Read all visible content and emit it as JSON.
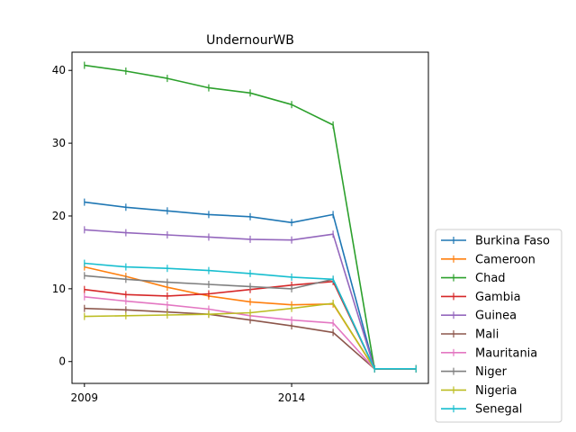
{
  "chart_data": {
    "type": "line",
    "title": "UndernourWB",
    "xlabel": "",
    "ylabel": "",
    "xlim": [
      2008.7,
      2017.3
    ],
    "ylim": [
      -3,
      42.5
    ],
    "x": [
      2009,
      2010,
      2011,
      2012,
      2013,
      2014,
      2015,
      2016,
      2017
    ],
    "x_ticks": [
      2009,
      2014
    ],
    "y_ticks": [
      0,
      10,
      20,
      30,
      40
    ],
    "marker": "|",
    "grid": false,
    "legend_position": "outside-right-bottom",
    "series": [
      {
        "name": "Burkina Faso",
        "color": "#1f77b4",
        "values": [
          21.9,
          21.2,
          20.7,
          20.2,
          19.9,
          19.1,
          20.2,
          -1.0,
          -1.0
        ]
      },
      {
        "name": "Cameroon",
        "color": "#ff7f0e",
        "values": [
          13.0,
          11.7,
          10.2,
          9.0,
          8.2,
          7.8,
          7.9,
          -1.0,
          -1.0
        ]
      },
      {
        "name": "Chad",
        "color": "#2ca02c",
        "values": [
          40.7,
          39.9,
          38.9,
          37.6,
          36.9,
          35.3,
          32.5,
          -1.0,
          -1.0
        ]
      },
      {
        "name": "Gambia",
        "color": "#d62728",
        "values": [
          9.9,
          9.2,
          9.0,
          9.3,
          9.9,
          10.5,
          11.0,
          -1.0,
          -1.0
        ]
      },
      {
        "name": "Guinea",
        "color": "#9467bd",
        "values": [
          18.1,
          17.7,
          17.4,
          17.1,
          16.8,
          16.7,
          17.5,
          -1.0,
          -1.0
        ]
      },
      {
        "name": "Mali",
        "color": "#8c564b",
        "values": [
          7.3,
          7.1,
          6.8,
          6.5,
          5.7,
          4.9,
          4.0,
          -1.0,
          -1.0
        ]
      },
      {
        "name": "Mauritania",
        "color": "#e377c2",
        "values": [
          8.9,
          8.3,
          7.8,
          7.2,
          6.3,
          5.7,
          5.3,
          -1.0,
          -1.0
        ]
      },
      {
        "name": "Niger",
        "color": "#7f7f7f",
        "values": [
          11.8,
          11.3,
          10.9,
          10.6,
          10.3,
          10.0,
          11.3,
          -1.0,
          -1.0
        ]
      },
      {
        "name": "Nigeria",
        "color": "#bcbd22",
        "values": [
          6.2,
          6.3,
          6.4,
          6.5,
          6.7,
          7.3,
          8.0,
          -1.0,
          -1.0
        ]
      },
      {
        "name": "Senegal",
        "color": "#17becf",
        "values": [
          13.5,
          13.0,
          12.8,
          12.5,
          12.1,
          11.6,
          11.3,
          -1.0,
          -1.0
        ]
      }
    ]
  }
}
